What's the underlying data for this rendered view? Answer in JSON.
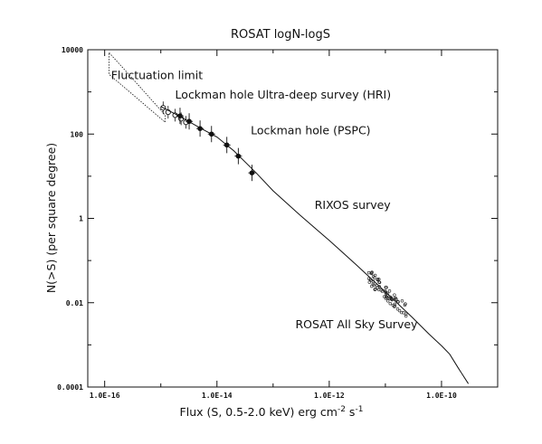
{
  "chart_data": {
    "type": "scatter",
    "title": "ROSAT logN-logS",
    "xlabel": "Flux (S, 0.5-2.0 keV) erg cm",
    "xlabel_sup1": "-2",
    "xlabel_mid": " s",
    "xlabel_sup2": "-1",
    "ylabel": "N(>S) (per square degree)",
    "x_scale": "log",
    "y_scale": "log",
    "xlim": [
      5e-17,
      1e-09
    ],
    "ylim": [
      0.0001,
      10000
    ],
    "x_ticks": [
      {
        "value": 1e-16,
        "label": "1.0E-16"
      },
      {
        "value": 1e-14,
        "label": "1.0E-14"
      },
      {
        "value": 1e-12,
        "label": "1.0E-12"
      },
      {
        "value": 1e-10,
        "label": "1.0E-10"
      }
    ],
    "y_ticks": [
      {
        "value": 10000,
        "label": "10000"
      },
      {
        "value": 100,
        "label": "100"
      },
      {
        "value": 1,
        "label": "1"
      },
      {
        "value": 0.01,
        "label": "0.01"
      },
      {
        "value": 0.0001,
        "label": "0.0001"
      }
    ],
    "grid": false,
    "annotations": [
      {
        "text": "Fluctuation limit",
        "x": 1.3e-16,
        "y": 2000
      },
      {
        "text": "Lockman hole Ultra-deep survey (HRI)",
        "x": 1.8e-15,
        "y": 700
      },
      {
        "text": "Lockman hole (PSPC)",
        "x": 4e-14,
        "y": 100
      },
      {
        "text": "RIXOS survey",
        "x": 5.5e-13,
        "y": 1.7
      },
      {
        "text": "ROSAT All Sky Survey",
        "x": 2.5e-13,
        "y": 0.0025
      }
    ],
    "series": [
      {
        "kind": "band",
        "points": [
          [
            1.2e-16,
            8500
          ],
          [
            2.2e-16,
            3500
          ],
          [
            1.2e-15,
            280
          ],
          [
            1.2e-15,
            190
          ],
          [
            1.2e-16,
            2600
          ]
        ]
      },
      {
        "kind": "open_points",
        "points": [
          [
            1.1e-15,
            420
          ],
          [
            1.35e-15,
            330
          ],
          [
            1.8e-15,
            280
          ],
          [
            2.3e-15,
            230
          ],
          [
            2.8e-15,
            190
          ]
        ]
      },
      {
        "kind": "filled_points",
        "points": [
          [
            2.2e-15,
            270
          ],
          [
            3.2e-15,
            200
          ],
          [
            5e-15,
            135
          ],
          [
            8e-15,
            100
          ],
          [
            1.5e-14,
            55
          ],
          [
            2.4e-14,
            30
          ],
          [
            4.2e-14,
            12
          ]
        ]
      },
      {
        "kind": "curve",
        "points": [
          [
            1e-15,
            450
          ],
          [
            2e-15,
            280
          ],
          [
            5e-15,
            140
          ],
          [
            1e-14,
            85
          ],
          [
            2e-14,
            40
          ],
          [
            5e-14,
            12
          ],
          [
            1e-13,
            4.5
          ],
          [
            3e-13,
            1.2
          ],
          [
            1e-12,
            0.3
          ],
          [
            3e-12,
            0.08
          ],
          [
            1e-11,
            0.018
          ],
          [
            3e-11,
            0.0045
          ],
          [
            6e-11,
            0.0018
          ],
          [
            1e-10,
            0.00095
          ],
          [
            1.4e-10,
            0.0006
          ],
          [
            2e-10,
            0.00028
          ],
          [
            3e-10,
            0.00012
          ]
        ]
      },
      {
        "kind": "scatter_cloud",
        "x_range": [
          5e-12,
          2.5e-11
        ],
        "description_slope": "dense scatter around power law"
      }
    ]
  }
}
